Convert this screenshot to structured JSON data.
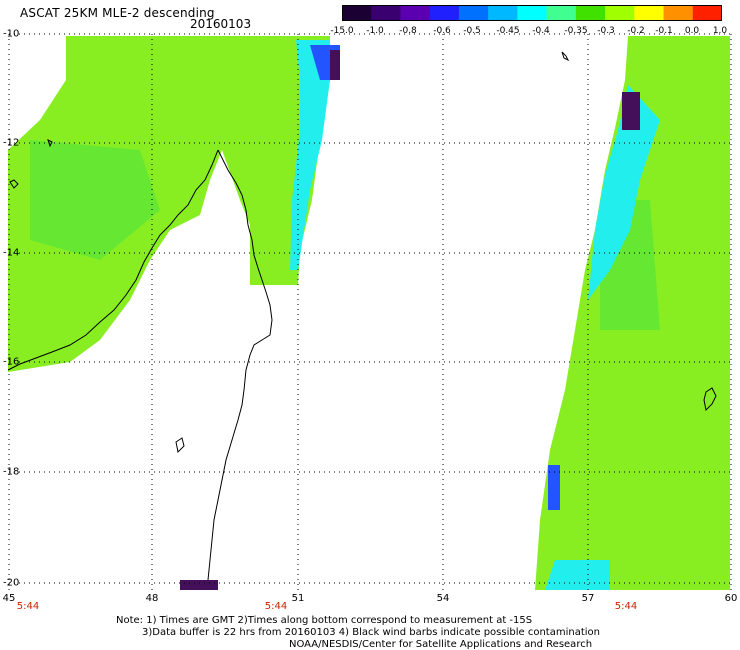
{
  "header": {
    "title": "ASCAT 25KM MLE-2 descending",
    "date": "20160103"
  },
  "colorbar": {
    "labels": [
      "-15.0",
      "-1.0",
      "-0.8",
      "-0.6",
      "-0.5",
      "-0.45",
      "-0.4",
      "-0.35",
      "-0.3",
      "-0.2",
      "-0.1",
      "0.0",
      "1.0"
    ],
    "colors": [
      "#1a0033",
      "#3a0070",
      "#5a00b0",
      "#2020ff",
      "#0070ff",
      "#00b8ff",
      "#00ffff",
      "#40ff90",
      "#40e000",
      "#a0ff00",
      "#ffff00",
      "#ff9000",
      "#ff2000"
    ]
  },
  "axes": {
    "lat_labels": [
      "-10",
      "-12",
      "-14",
      "-16",
      "-18",
      "-20"
    ],
    "lon_labels": [
      "45",
      "48",
      "51",
      "54",
      "57",
      "60"
    ],
    "time_labels": [
      "5:44",
      "5:44",
      "5:44"
    ]
  },
  "notes": {
    "line1": "Note: 1) Times are GMT 2)Times along bottom correspond to measurement at -15S",
    "line2": "3)Data buffer is 22 hrs from 20160103 4) Black wind barbs indicate possible contamination",
    "line3": "NOAA/NESDIS/Center for Satellite Applications and Research"
  },
  "colors": {
    "swath_main": "#88ee22",
    "swath_alt": "#66e833",
    "swath_cyan": "#22eeee",
    "swath_blue": "#2255ff",
    "swath_dark": "#44105a",
    "coast": "#000000",
    "grid": "#000000",
    "time_text": "#cc2200"
  }
}
